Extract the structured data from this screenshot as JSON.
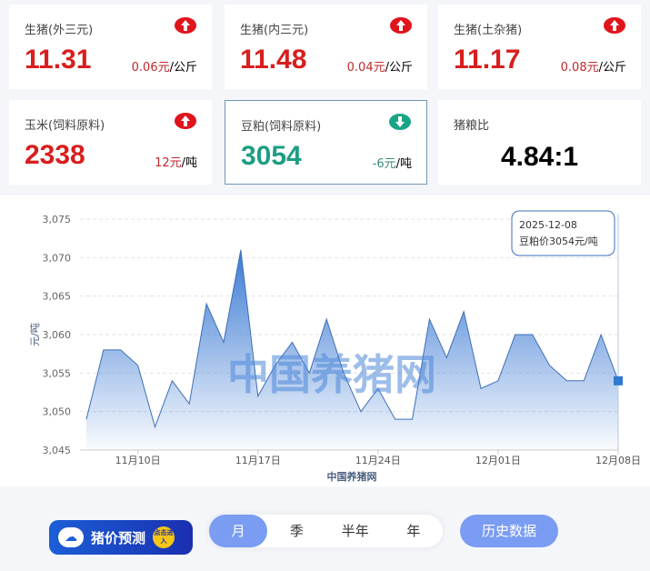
{
  "cards": [
    {
      "title": "生猪(外三元)",
      "value": "11.31",
      "change": "0.06元",
      "unit": "/公斤",
      "trend": "up",
      "icon": "arrow-up-icon"
    },
    {
      "title": "生猪(内三元)",
      "value": "11.48",
      "change": "0.04元",
      "unit": "/公斤",
      "trend": "up",
      "icon": "arrow-up-icon"
    },
    {
      "title": "生猪(土杂猪)",
      "value": "11.17",
      "change": "0.08元",
      "unit": "/公斤",
      "trend": "up",
      "icon": "arrow-up-icon"
    },
    {
      "title": "玉米(饲料原料)",
      "value": "2338",
      "change": "12元",
      "unit": "/吨",
      "trend": "up",
      "icon": "arrow-up-icon"
    },
    {
      "title": "豆粕(饲料原料)",
      "value": "3054",
      "change": "-6元",
      "unit": "/吨",
      "trend": "down",
      "icon": "arrow-down-icon",
      "selected": true
    },
    {
      "title": "猪粮比",
      "value": "4.84:1"
    }
  ],
  "colors": {
    "up": "#d81e1e",
    "down": "#1d9e84",
    "accent": "#7a9cf2",
    "series": "#3d7bd4"
  },
  "chart_data": {
    "type": "area",
    "ylabel": "元/吨",
    "xlabel": "中国养猪网",
    "watermark": "中国养猪网",
    "ylim": [
      3045,
      3075
    ],
    "yticks": [
      "3,045",
      "3,050",
      "3,055",
      "3,060",
      "3,065",
      "3,070",
      "3,075"
    ],
    "xticks": [
      {
        "date": "11-10",
        "label": "11月10日"
      },
      {
        "date": "11-17",
        "label": "11月17日"
      },
      {
        "date": "11-24",
        "label": "11月24日"
      },
      {
        "date": "12-01",
        "label": "12月01日"
      },
      {
        "date": "12-08",
        "label": "12月08日"
      }
    ],
    "x": [
      "11-07",
      "11-08",
      "11-09",
      "11-10",
      "11-11",
      "11-12",
      "11-13",
      "11-14",
      "11-15",
      "11-16",
      "11-17",
      "11-18",
      "11-19",
      "11-20",
      "11-21",
      "11-22",
      "11-23",
      "11-24",
      "11-25",
      "11-26",
      "11-27",
      "11-28",
      "11-29",
      "11-30",
      "12-01",
      "12-02",
      "12-03",
      "12-04",
      "12-05",
      "12-06",
      "12-07",
      "12-08"
    ],
    "values": [
      3049,
      3058,
      3058,
      3056,
      3048,
      3054,
      3051,
      3064,
      3059,
      3071,
      3052,
      3056,
      3059,
      3055,
      3062,
      3055,
      3050,
      3053,
      3049,
      3049,
      3062,
      3057,
      3063,
      3053,
      3054,
      3060,
      3060,
      3056,
      3054,
      3054,
      3060,
      3054
    ],
    "grid": true,
    "tooltip": {
      "date": "2025-12-08",
      "text": "豆粕价3054元/吨"
    }
  },
  "periods": [
    "月",
    "季",
    "半年",
    "年"
  ],
  "active_period": "月",
  "history_label": "历史数据",
  "forecast": {
    "label": "猪价预测",
    "badge": "点击进入"
  }
}
